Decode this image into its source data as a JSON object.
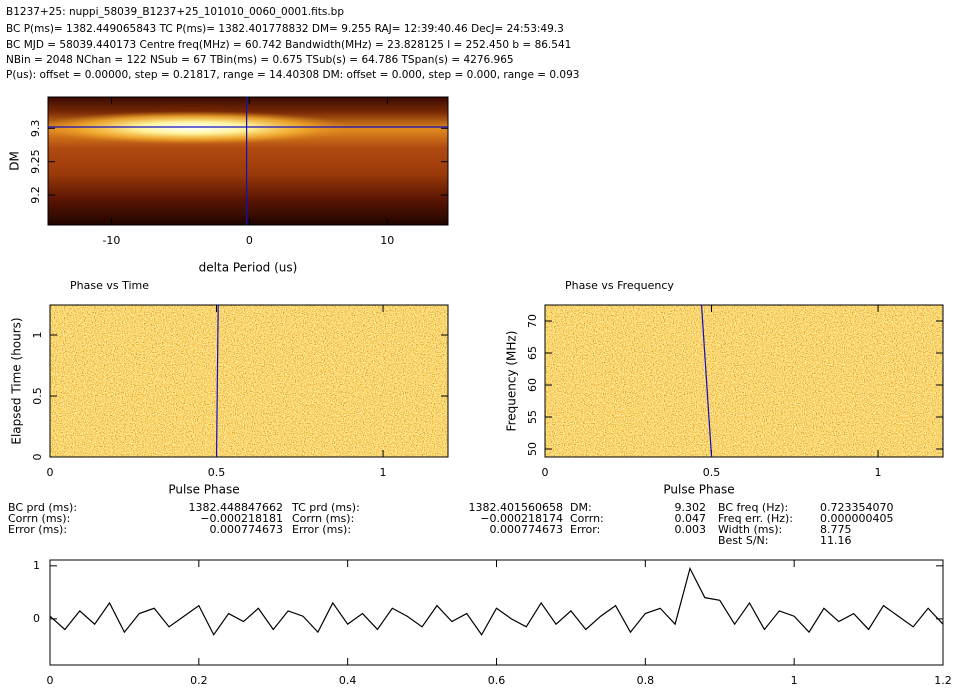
{
  "header": {
    "title": "B1237+25: nuppi_58039_B1237+25_101010_0060_0001.fits.bp",
    "lines": [
      "BC P(ms)= 1382.449065843 TC P(ms)= 1382.401778832 DM= 9.255 RAJ= 12:39:40.46 DecJ= 24:53:49.3",
      "BC MJD = 58039.440173 Centre freq(MHz) = 60.742 Bandwidth(MHz) = 23.828125 l = 252.450 b = 86.541",
      "NBin = 2048 NChan = 122 NSub = 67 TBin(ms) = 0.675 TSub(s) = 64.786 TSpan(s) = 4276.965",
      "P(us): offset = 0.00000, step = 0.21817, range = 14.40308 DM: offset = 0.000, step = 0.000, range = 0.093"
    ]
  },
  "stats": [
    {
      "labels": [
        "BC prd (ms):",
        "Corrn (ms):",
        "Error (ms):"
      ],
      "values": [
        "1382.448847662",
        "−0.000218181",
        "0.000774673"
      ]
    },
    {
      "labels": [
        "TC prd (ms):",
        "Corrn (ms):",
        "Error (ms):"
      ],
      "values": [
        "1382.401560658",
        "−0.000218174",
        "0.000774673"
      ]
    },
    {
      "labels": [
        "DM:",
        "Corrn:",
        "Error:"
      ],
      "values": [
        "9.302",
        "0.047",
        "0.003"
      ]
    },
    {
      "labels": [
        "BC freq (Hz):",
        "Freq err. (Hz):",
        "Width (ms):",
        "Best S/N:"
      ],
      "values": [
        "0.723354070",
        "0.000000405",
        "8.775",
        "11.16"
      ]
    }
  ],
  "chart_data": [
    {
      "type": "heatmap",
      "xlabel": "delta Period (us)",
      "ylabel": "DM",
      "xlim": [
        -14.6,
        14.4
      ],
      "ylim": [
        9.155,
        9.347
      ],
      "xticks": [
        -10,
        0,
        10
      ],
      "yticks": [
        9.2,
        9.25,
        9.3
      ],
      "series": [
        {
          "color": "#1010c0",
          "x": [
            -14.6,
            14.4
          ],
          "values": [
            9.302,
            9.302
          ]
        },
        {
          "color": "#1010c0",
          "x": [
            -0.2,
            -0.2
          ],
          "values": [
            9.155,
            9.347
          ]
        }
      ]
    },
    {
      "type": "heatmap",
      "title": "Phase vs Time",
      "xlabel": "Pulse Phase",
      "ylabel": "Elapsed Time (hours)",
      "xlim": [
        0,
        1.195
      ],
      "ylim": [
        0,
        1.246
      ],
      "xticks": [
        0,
        0.5,
        1
      ],
      "yticks": [
        0,
        0.5,
        1
      ],
      "series": [
        {
          "color": "#1010c0",
          "x": [
            0.5,
            0.505
          ],
          "values": [
            0,
            1.246
          ]
        }
      ]
    },
    {
      "type": "heatmap",
      "title": "Phase vs Frequency",
      "xlabel": "Pulse Phase",
      "ylabel": "Frequency (MHz)",
      "xlim": [
        0,
        1.195
      ],
      "ylim": [
        48.75,
        72.5
      ],
      "xticks": [
        0,
        0.5,
        1
      ],
      "yticks": [
        50,
        55,
        60,
        65,
        70
      ],
      "series": [
        {
          "color": "#1010c0",
          "x": [
            0.5,
            0.47
          ],
          "values": [
            48.75,
            72.5
          ]
        }
      ]
    },
    {
      "type": "line",
      "xlim": [
        0,
        1.2
      ],
      "ylim": [
        -0.87,
        1.11
      ],
      "xticks": [
        0,
        0.2,
        0.4,
        0.6,
        0.8,
        1,
        1.2
      ],
      "yticks": [
        0,
        1
      ],
      "series": [
        {
          "color": "#000000",
          "x": [
            0,
            0.02,
            0.04,
            0.06,
            0.08,
            0.1,
            0.12,
            0.14,
            0.16,
            0.18,
            0.2,
            0.22,
            0.24,
            0.26,
            0.28,
            0.3,
            0.32,
            0.34,
            0.36,
            0.38,
            0.4,
            0.42,
            0.44,
            0.46,
            0.48,
            0.5,
            0.52,
            0.54,
            0.56,
            0.58,
            0.6,
            0.62,
            0.64,
            0.66,
            0.68,
            0.7,
            0.72,
            0.74,
            0.76,
            0.78,
            0.8,
            0.82,
            0.84,
            0.86,
            0.88,
            0.9,
            0.92,
            0.94,
            0.96,
            0.98,
            1,
            1.02,
            1.04,
            1.06,
            1.08,
            1.1,
            1.12,
            1.14,
            1.16,
            1.18,
            1.2
          ],
          "values": [
            0.05,
            -0.2,
            0.15,
            -0.1,
            0.3,
            -0.25,
            0.1,
            0.2,
            -0.15,
            0.05,
            0.25,
            -0.3,
            0.1,
            -0.05,
            0.2,
            -0.2,
            0.15,
            0.05,
            -0.25,
            0.3,
            -0.1,
            0.1,
            -0.2,
            0.2,
            0.05,
            -0.15,
            0.25,
            -0.05,
            0.1,
            -0.3,
            0.2,
            0,
            -0.15,
            0.3,
            -0.1,
            0.15,
            -0.2,
            0.05,
            0.25,
            -0.25,
            0.1,
            0.2,
            -0.1,
            0.95,
            0.4,
            0.35,
            -0.1,
            0.3,
            -0.2,
            0.15,
            0.05,
            -0.25,
            0.2,
            -0.05,
            0.1,
            -0.2,
            0.25,
            0.05,
            -0.15,
            0.2,
            -0.1
          ]
        }
      ]
    }
  ]
}
